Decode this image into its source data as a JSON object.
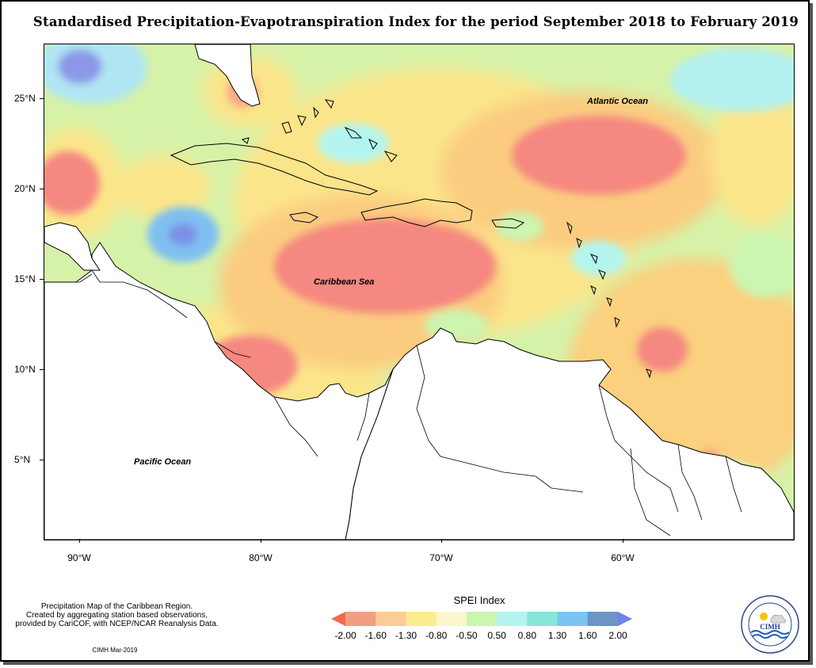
{
  "title": "Standardised Precipitation-Evapotranspiration Index for the period September 2018 to February 2019",
  "map": {
    "labels": {
      "atlantic": "Atlantic Ocean",
      "caribbean": "Caribbean Sea",
      "pacific": "Pacific Ocean"
    },
    "lat_ticks": [
      "25°N",
      "20°N",
      "15°N",
      "10°N",
      "5°N"
    ],
    "lon_ticks": [
      "90°W",
      "80°W",
      "70°W",
      "60°W"
    ]
  },
  "legend": {
    "title": "SPEI Index",
    "breaks": [
      "-2.00",
      "-1.60",
      "-1.30",
      "-0.80",
      "-0.50",
      "0.50",
      "0.80",
      "1.30",
      "1.60",
      "2.00"
    ],
    "colors": [
      "#f26a50",
      "#f0a080",
      "#fccc96",
      "#fbee8c",
      "#fbf7cc",
      "#ccf5b0",
      "#b3f5ee",
      "#86e6d8",
      "#7bc4f2",
      "#6c94c6",
      "#6f84e8"
    ]
  },
  "notes": {
    "line1": "Precipitation Map of the Caribbean Region.",
    "line2": "Created by aggregating station based observations,",
    "line3": "provided by CariCOF, with NCEP/NCAR Reanalysis Data.",
    "credit": "CIMH Mar-2019"
  },
  "logo": {
    "text": "CIMH",
    "ring_text": "Caribbean Institute for Meteorology and Hydrology"
  }
}
